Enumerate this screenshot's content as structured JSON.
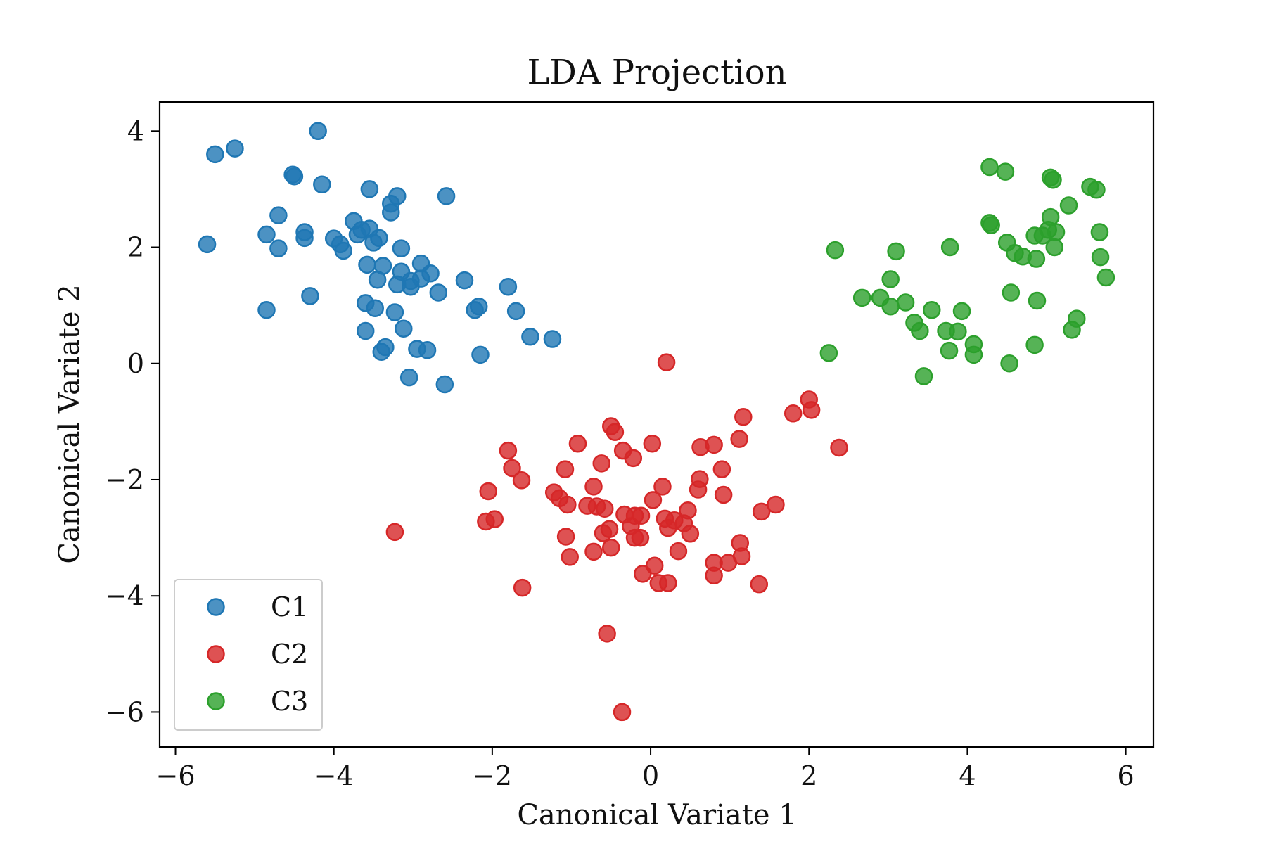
{
  "chart_data": {
    "type": "scatter",
    "title": "LDA Projection",
    "xlabel": "Canonical Variate 1",
    "ylabel": "Canonical Variate 2",
    "xlim": [
      -6.2,
      6.35
    ],
    "ylim": [
      -6.6,
      4.5
    ],
    "xticks": [
      -6,
      -4,
      -2,
      0,
      2,
      4,
      6
    ],
    "xtick_labels": [
      "−6",
      "−4",
      "−2",
      "0",
      "2",
      "4",
      "6"
    ],
    "yticks": [
      -6,
      -4,
      -2,
      0,
      2,
      4
    ],
    "ytick_labels": [
      "−6",
      "−4",
      "−2",
      "0",
      "2",
      "4"
    ],
    "grid": false,
    "legend_position": "lower-left",
    "series": [
      {
        "name": "C1",
        "color": "#1f77b4",
        "points": [
          [
            -5.6,
            2.05
          ],
          [
            -5.5,
            3.6
          ],
          [
            -5.25,
            3.7
          ],
          [
            -4.85,
            2.22
          ],
          [
            -4.85,
            0.92
          ],
          [
            -4.7,
            2.55
          ],
          [
            -4.7,
            1.98
          ],
          [
            -4.52,
            3.25
          ],
          [
            -4.5,
            3.22
          ],
          [
            -4.37,
            2.26
          ],
          [
            -4.37,
            2.16
          ],
          [
            -4.3,
            1.16
          ],
          [
            -4.2,
            4.0
          ],
          [
            -4.15,
            3.08
          ],
          [
            -4.0,
            2.15
          ],
          [
            -3.92,
            2.05
          ],
          [
            -3.88,
            1.94
          ],
          [
            -3.75,
            2.45
          ],
          [
            -3.7,
            2.22
          ],
          [
            -3.65,
            2.3
          ],
          [
            -3.55,
            3.0
          ],
          [
            -3.55,
            2.32
          ],
          [
            -3.5,
            2.08
          ],
          [
            -3.43,
            2.16
          ],
          [
            -3.58,
            1.7
          ],
          [
            -3.38,
            1.68
          ],
          [
            -3.6,
            1.04
          ],
          [
            -3.48,
            0.95
          ],
          [
            -3.45,
            1.44
          ],
          [
            -3.6,
            0.56
          ],
          [
            -3.35,
            0.28
          ],
          [
            -3.4,
            0.2
          ],
          [
            -3.28,
            2.75
          ],
          [
            -3.28,
            2.6
          ],
          [
            -3.2,
            2.88
          ],
          [
            -3.15,
            1.98
          ],
          [
            -3.15,
            1.58
          ],
          [
            -3.2,
            1.36
          ],
          [
            -3.03,
            1.42
          ],
          [
            -3.03,
            1.32
          ],
          [
            -2.9,
            1.72
          ],
          [
            -2.9,
            1.46
          ],
          [
            -2.78,
            1.55
          ],
          [
            -3.23,
            0.88
          ],
          [
            -3.12,
            0.6
          ],
          [
            -2.95,
            0.25
          ],
          [
            -2.82,
            0.23
          ],
          [
            -3.05,
            -0.24
          ],
          [
            -2.58,
            2.88
          ],
          [
            -2.68,
            1.22
          ],
          [
            -2.35,
            1.43
          ],
          [
            -2.6,
            -0.36
          ],
          [
            -2.22,
            0.92
          ],
          [
            -2.17,
            0.98
          ],
          [
            -2.15,
            0.15
          ],
          [
            -1.8,
            1.32
          ],
          [
            -1.7,
            0.9
          ],
          [
            -1.52,
            0.46
          ],
          [
            -1.24,
            0.42
          ]
        ]
      },
      {
        "name": "C2",
        "color": "#d62728",
        "points": [
          [
            0.2,
            0.02
          ],
          [
            2.0,
            -0.62
          ],
          [
            2.03,
            -0.8
          ],
          [
            1.8,
            -0.86
          ],
          [
            2.38,
            -1.45
          ],
          [
            1.17,
            -0.92
          ],
          [
            1.12,
            -1.3
          ],
          [
            -0.5,
            -1.08
          ],
          [
            -0.45,
            -1.18
          ],
          [
            -0.92,
            -1.38
          ],
          [
            0.02,
            -1.38
          ],
          [
            0.8,
            -1.4
          ],
          [
            0.63,
            -1.44
          ],
          [
            -0.35,
            -1.5
          ],
          [
            -1.8,
            -1.5
          ],
          [
            -0.62,
            -1.72
          ],
          [
            -0.22,
            -1.63
          ],
          [
            -1.75,
            -1.8
          ],
          [
            -1.63,
            -2.01
          ],
          [
            -1.08,
            -1.82
          ],
          [
            0.9,
            -1.82
          ],
          [
            0.62,
            -1.99
          ],
          [
            0.15,
            -2.12
          ],
          [
            -0.72,
            -2.12
          ],
          [
            -2.05,
            -2.2
          ],
          [
            0.6,
            -2.17
          ],
          [
            0.92,
            -2.26
          ],
          [
            0.03,
            -2.35
          ],
          [
            -1.22,
            -2.22
          ],
          [
            -1.15,
            -2.32
          ],
          [
            -1.05,
            -2.43
          ],
          [
            -0.8,
            -2.45
          ],
          [
            -0.68,
            -2.46
          ],
          [
            -0.58,
            -2.5
          ],
          [
            1.58,
            -2.43
          ],
          [
            1.4,
            -2.55
          ],
          [
            0.47,
            -2.53
          ],
          [
            -0.33,
            -2.6
          ],
          [
            -0.2,
            -2.62
          ],
          [
            -0.12,
            -2.62
          ],
          [
            0.18,
            -2.67
          ],
          [
            0.3,
            -2.7
          ],
          [
            0.42,
            -2.75
          ],
          [
            -0.25,
            -2.8
          ],
          [
            0.22,
            -2.83
          ],
          [
            -2.08,
            -2.72
          ],
          [
            -1.97,
            -2.68
          ],
          [
            -0.52,
            -2.85
          ],
          [
            -0.6,
            -2.92
          ],
          [
            0.5,
            -2.93
          ],
          [
            -1.07,
            -2.98
          ],
          [
            -0.2,
            -3.0
          ],
          [
            -0.13,
            -3.0
          ],
          [
            1.13,
            -3.09
          ],
          [
            -0.5,
            -3.17
          ],
          [
            -0.72,
            -3.24
          ],
          [
            0.35,
            -3.23
          ],
          [
            -1.02,
            -3.33
          ],
          [
            1.15,
            -3.32
          ],
          [
            0.8,
            -3.43
          ],
          [
            0.98,
            -3.43
          ],
          [
            0.05,
            -3.48
          ],
          [
            -0.1,
            -3.62
          ],
          [
            0.8,
            -3.65
          ],
          [
            0.1,
            -3.78
          ],
          [
            0.22,
            -3.78
          ],
          [
            1.37,
            -3.8
          ],
          [
            -1.62,
            -3.86
          ],
          [
            -3.23,
            -2.9
          ],
          [
            -0.55,
            -4.65
          ],
          [
            -0.36,
            -6.0
          ]
        ]
      },
      {
        "name": "C3",
        "color": "#2ca02c",
        "points": [
          [
            2.33,
            1.95
          ],
          [
            2.25,
            0.18
          ],
          [
            2.67,
            1.13
          ],
          [
            2.9,
            1.13
          ],
          [
            3.03,
            1.45
          ],
          [
            3.03,
            0.98
          ],
          [
            3.1,
            1.93
          ],
          [
            3.22,
            1.05
          ],
          [
            3.33,
            0.7
          ],
          [
            3.4,
            0.56
          ],
          [
            3.45,
            -0.22
          ],
          [
            3.55,
            0.92
          ],
          [
            3.73,
            0.56
          ],
          [
            3.77,
            0.22
          ],
          [
            3.78,
            2.0
          ],
          [
            3.88,
            0.55
          ],
          [
            3.93,
            0.9
          ],
          [
            4.08,
            0.33
          ],
          [
            4.08,
            0.15
          ],
          [
            4.28,
            3.38
          ],
          [
            4.28,
            2.42
          ],
          [
            4.3,
            2.38
          ],
          [
            4.48,
            3.3
          ],
          [
            4.5,
            2.08
          ],
          [
            4.53,
            0.0
          ],
          [
            4.55,
            1.22
          ],
          [
            4.6,
            1.9
          ],
          [
            4.7,
            1.84
          ],
          [
            4.85,
            0.32
          ],
          [
            4.85,
            2.2
          ],
          [
            4.87,
            1.8
          ],
          [
            4.88,
            1.08
          ],
          [
            4.95,
            2.2
          ],
          [
            5.02,
            2.3
          ],
          [
            5.05,
            2.52
          ],
          [
            5.05,
            3.2
          ],
          [
            5.08,
            3.16
          ],
          [
            5.1,
            2.0
          ],
          [
            5.12,
            2.26
          ],
          [
            5.28,
            2.72
          ],
          [
            5.32,
            0.58
          ],
          [
            5.38,
            0.77
          ],
          [
            5.55,
            3.04
          ],
          [
            5.63,
            2.99
          ],
          [
            5.67,
            2.26
          ],
          [
            5.68,
            1.83
          ],
          [
            5.75,
            1.48
          ]
        ]
      }
    ]
  }
}
